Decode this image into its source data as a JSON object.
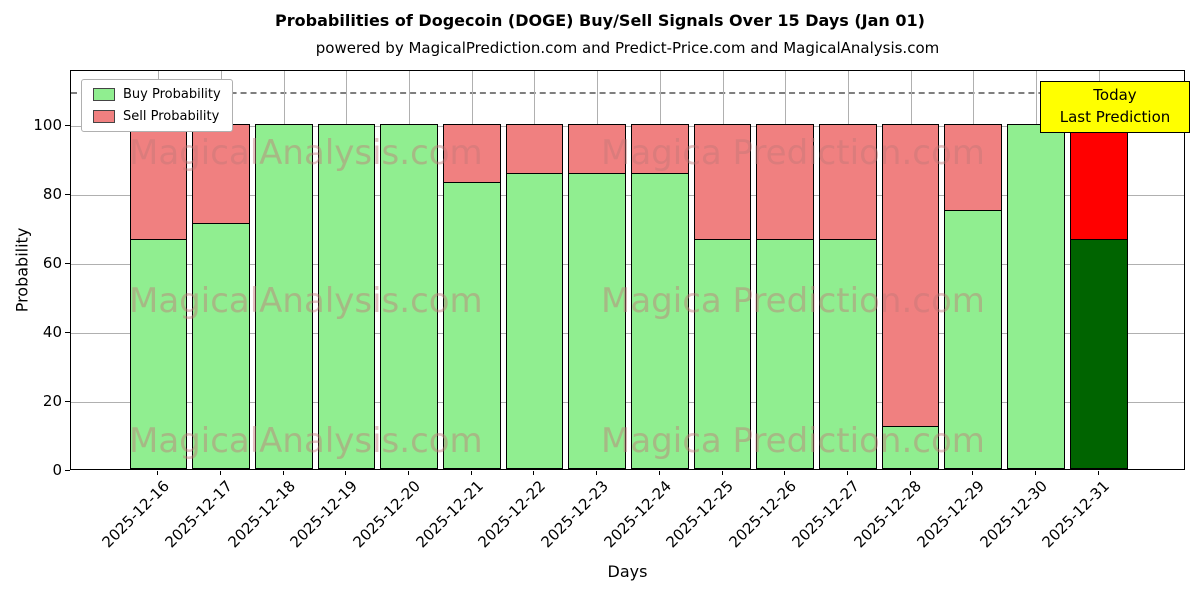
{
  "title": "Probabilities of Dogecoin (DOGE) Buy/Sell Signals Over 15 Days (Jan 01)",
  "subtitle": "powered by MagicalPrediction.com and Predict-Price.com and MagicalAnalysis.com",
  "legend": {
    "items": [
      {
        "label": "Buy Probability",
        "color": "#90ee90"
      },
      {
        "label": "Sell Probability",
        "color": "#f08080"
      }
    ]
  },
  "today_box": {
    "line1": "Today",
    "line2": "Last Prediction",
    "bg": "#ffff00"
  },
  "axes": {
    "xlabel": "Days",
    "ylabel": "Probability",
    "yticks": [
      0,
      20,
      40,
      60,
      80,
      100
    ],
    "ylim": [
      0,
      116
    ],
    "dashed_line_y": 110,
    "grid": true
  },
  "watermarks": {
    "color": "rgba(193,120,120,0.45)",
    "texts": [
      "MagicalAnalysis.com",
      "Magica Prediction.com"
    ]
  },
  "chart_data": {
    "type": "bar",
    "stacked": true,
    "title": "Probabilities of Dogecoin (DOGE) Buy/Sell Signals Over 15 Days (Jan 01)",
    "xlabel": "Days",
    "ylabel": "Probability",
    "ylim": [
      0,
      116
    ],
    "categories": [
      "2025-12-16",
      "2025-12-17",
      "2025-12-18",
      "2025-12-19",
      "2025-12-20",
      "2025-12-21",
      "2025-12-22",
      "2025-12-23",
      "2025-12-24",
      "2025-12-25",
      "2025-12-26",
      "2025-12-27",
      "2025-12-28",
      "2025-12-29",
      "2025-12-30",
      "2025-12-31"
    ],
    "series": [
      {
        "name": "Buy Probability",
        "color": "#90ee90",
        "values": [
          66.7,
          71.4,
          100,
          100,
          100,
          83.3,
          85.7,
          85.7,
          85.7,
          66.7,
          66.7,
          66.7,
          12.5,
          75,
          100,
          66.7
        ]
      },
      {
        "name": "Sell Probability",
        "color": "#f08080",
        "values": [
          33.3,
          28.6,
          0,
          0,
          0,
          16.7,
          14.3,
          14.3,
          14.3,
          33.3,
          33.3,
          33.3,
          87.5,
          25,
          0,
          33.3
        ]
      }
    ],
    "highlight": {
      "index": 15,
      "buy_color": "#006400",
      "sell_color": "#ff0000",
      "note": "Today Last Prediction"
    }
  }
}
